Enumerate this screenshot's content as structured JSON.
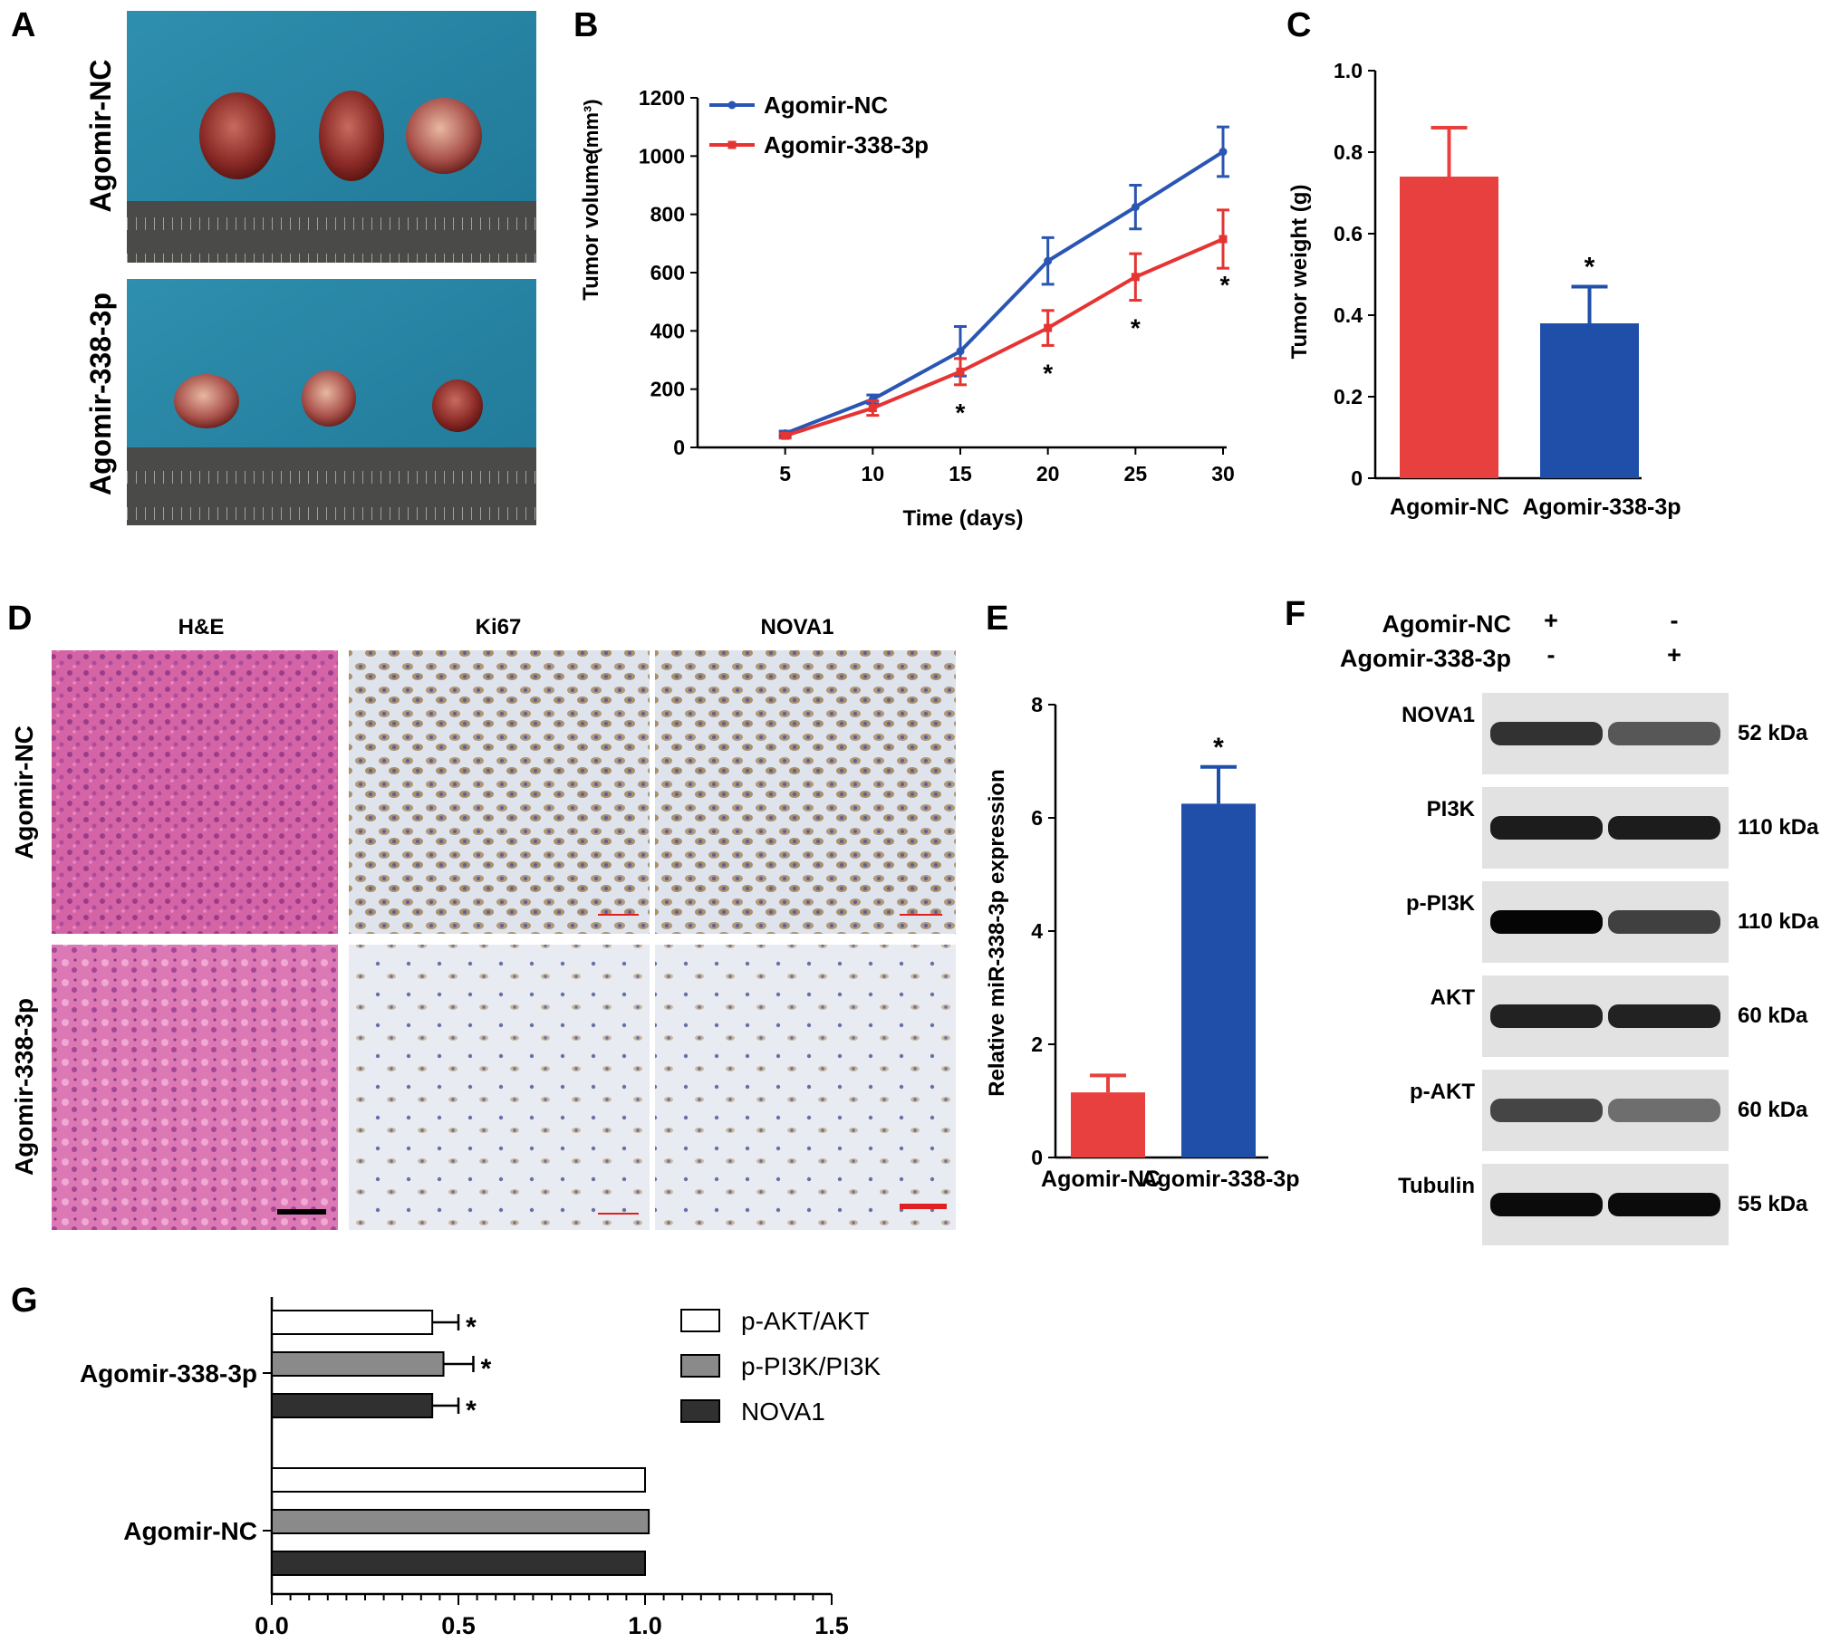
{
  "panels": {
    "A": {
      "letter": "A",
      "rows": [
        "Agomir-NC",
        "Agomir-338-3p"
      ]
    },
    "D": {
      "letter": "D",
      "columns": [
        "H&E",
        "Ki67",
        "NOVA1"
      ],
      "rows": [
        "Agomir-NC",
        "Agomir-338-3p"
      ]
    },
    "F": {
      "letter": "F",
      "header_rows": [
        {
          "label": "Agomir-NC",
          "lane1": "+",
          "lane2": "-"
        },
        {
          "label": "Agomir-338-3p",
          "lane1": "-",
          "lane2": "+"
        }
      ],
      "bands": [
        {
          "protein": "NOVA1",
          "size": "52 kDa",
          "intensity": [
            0.78,
            0.62
          ]
        },
        {
          "protein": "PI3K",
          "size": "110 kDa",
          "intensity": [
            0.88,
            0.88
          ]
        },
        {
          "protein": "p-PI3K",
          "size": "110 kDa",
          "intensity": [
            0.98,
            0.72
          ]
        },
        {
          "protein": "AKT",
          "size": "60 kDa",
          "intensity": [
            0.85,
            0.85
          ]
        },
        {
          "protein": "p-AKT",
          "size": "60 kDa",
          "intensity": [
            0.7,
            0.52
          ]
        },
        {
          "protein": "Tubulin",
          "size": "55 kDa",
          "intensity": [
            0.95,
            0.95
          ]
        }
      ]
    }
  },
  "colors": {
    "agomir_nc_red": "#e8403f",
    "agomir_338_blue": "#1f4fa8",
    "line_blue": "#2a55b2",
    "line_red": "#e53432",
    "bar_white": "#ffffff",
    "bar_grey": "#8a8a8a",
    "bar_black": "#303030"
  },
  "chart_data": [
    {
      "panel": "B",
      "type": "line",
      "xlabel": "Time (days)",
      "ylabel": "Tumor volume",
      "ylabel_unit": "(mm³)",
      "x": [
        5,
        10,
        15,
        20,
        25,
        30
      ],
      "xlim": [
        0,
        30
      ],
      "ylim": [
        0,
        1200
      ],
      "xticks": [
        5,
        10,
        15,
        20,
        25,
        30
      ],
      "yticks": [
        0,
        200,
        400,
        600,
        800,
        1000,
        1200
      ],
      "legend_position": "top-left",
      "series": [
        {
          "name": "Agomir-NC",
          "values": [
            48,
            165,
            330,
            640,
            825,
            1015
          ],
          "errors": [
            8,
            15,
            85,
            80,
            75,
            85
          ],
          "color": "#2a55b2"
        },
        {
          "name": "Agomir-338-3p",
          "values": [
            40,
            135,
            260,
            410,
            585,
            715
          ],
          "errors": [
            8,
            25,
            45,
            60,
            80,
            100
          ],
          "color": "#e53432"
        }
      ],
      "significance": [
        {
          "x": 15,
          "mark": "*"
        },
        {
          "x": 20,
          "mark": "*"
        },
        {
          "x": 25,
          "mark": "*"
        },
        {
          "x": 30,
          "mark": "*"
        }
      ]
    },
    {
      "panel": "C",
      "type": "bar",
      "ylabel": "Tumor weight (g)",
      "categories": [
        "Agomir-NC",
        "Agomir-338-3p"
      ],
      "values": [
        0.74,
        0.38
      ],
      "errors": [
        0.12,
        0.09
      ],
      "ylim": [
        0,
        1.0
      ],
      "yticks": [
        "0",
        "0.2",
        "0.4",
        "0.6",
        "0.8",
        "1.0"
      ],
      "significance": [
        null,
        "*"
      ]
    },
    {
      "panel": "E",
      "type": "bar",
      "ylabel": "Relative miR-338-3p expression",
      "categories": [
        "Agomir-NC",
        "Agomir-338-3p"
      ],
      "values": [
        1.15,
        6.25
      ],
      "errors": [
        0.3,
        0.65
      ],
      "ylim": [
        0,
        8
      ],
      "yticks": [
        "0",
        "2",
        "4",
        "6",
        "8"
      ],
      "significance": [
        null,
        "*"
      ]
    },
    {
      "panel": "G",
      "type": "bar",
      "orientation": "horizontal",
      "groups": [
        "Agomir-338-3p",
        "Agomir-NC"
      ],
      "series": [
        {
          "name": "p-AKT/AKT",
          "values": [
            0.43,
            1.0
          ],
          "errors": [
            0.07,
            0
          ]
        },
        {
          "name": "p-PI3K/PI3K",
          "values": [
            0.46,
            1.01
          ],
          "errors": [
            0.08,
            0
          ]
        },
        {
          "name": "NOVA1",
          "values": [
            0.43,
            1.0
          ],
          "errors": [
            0.07,
            0
          ]
        }
      ],
      "xlim": [
        0,
        1.5
      ],
      "xticks": [
        "0.0",
        "0.5",
        "1.0",
        "1.5"
      ],
      "legend_position": "top-right",
      "significance": {
        "Agomir-338-3p": [
          "*",
          "*",
          "*"
        ],
        "Agomir-NC": [
          null,
          null,
          null
        ]
      }
    }
  ]
}
